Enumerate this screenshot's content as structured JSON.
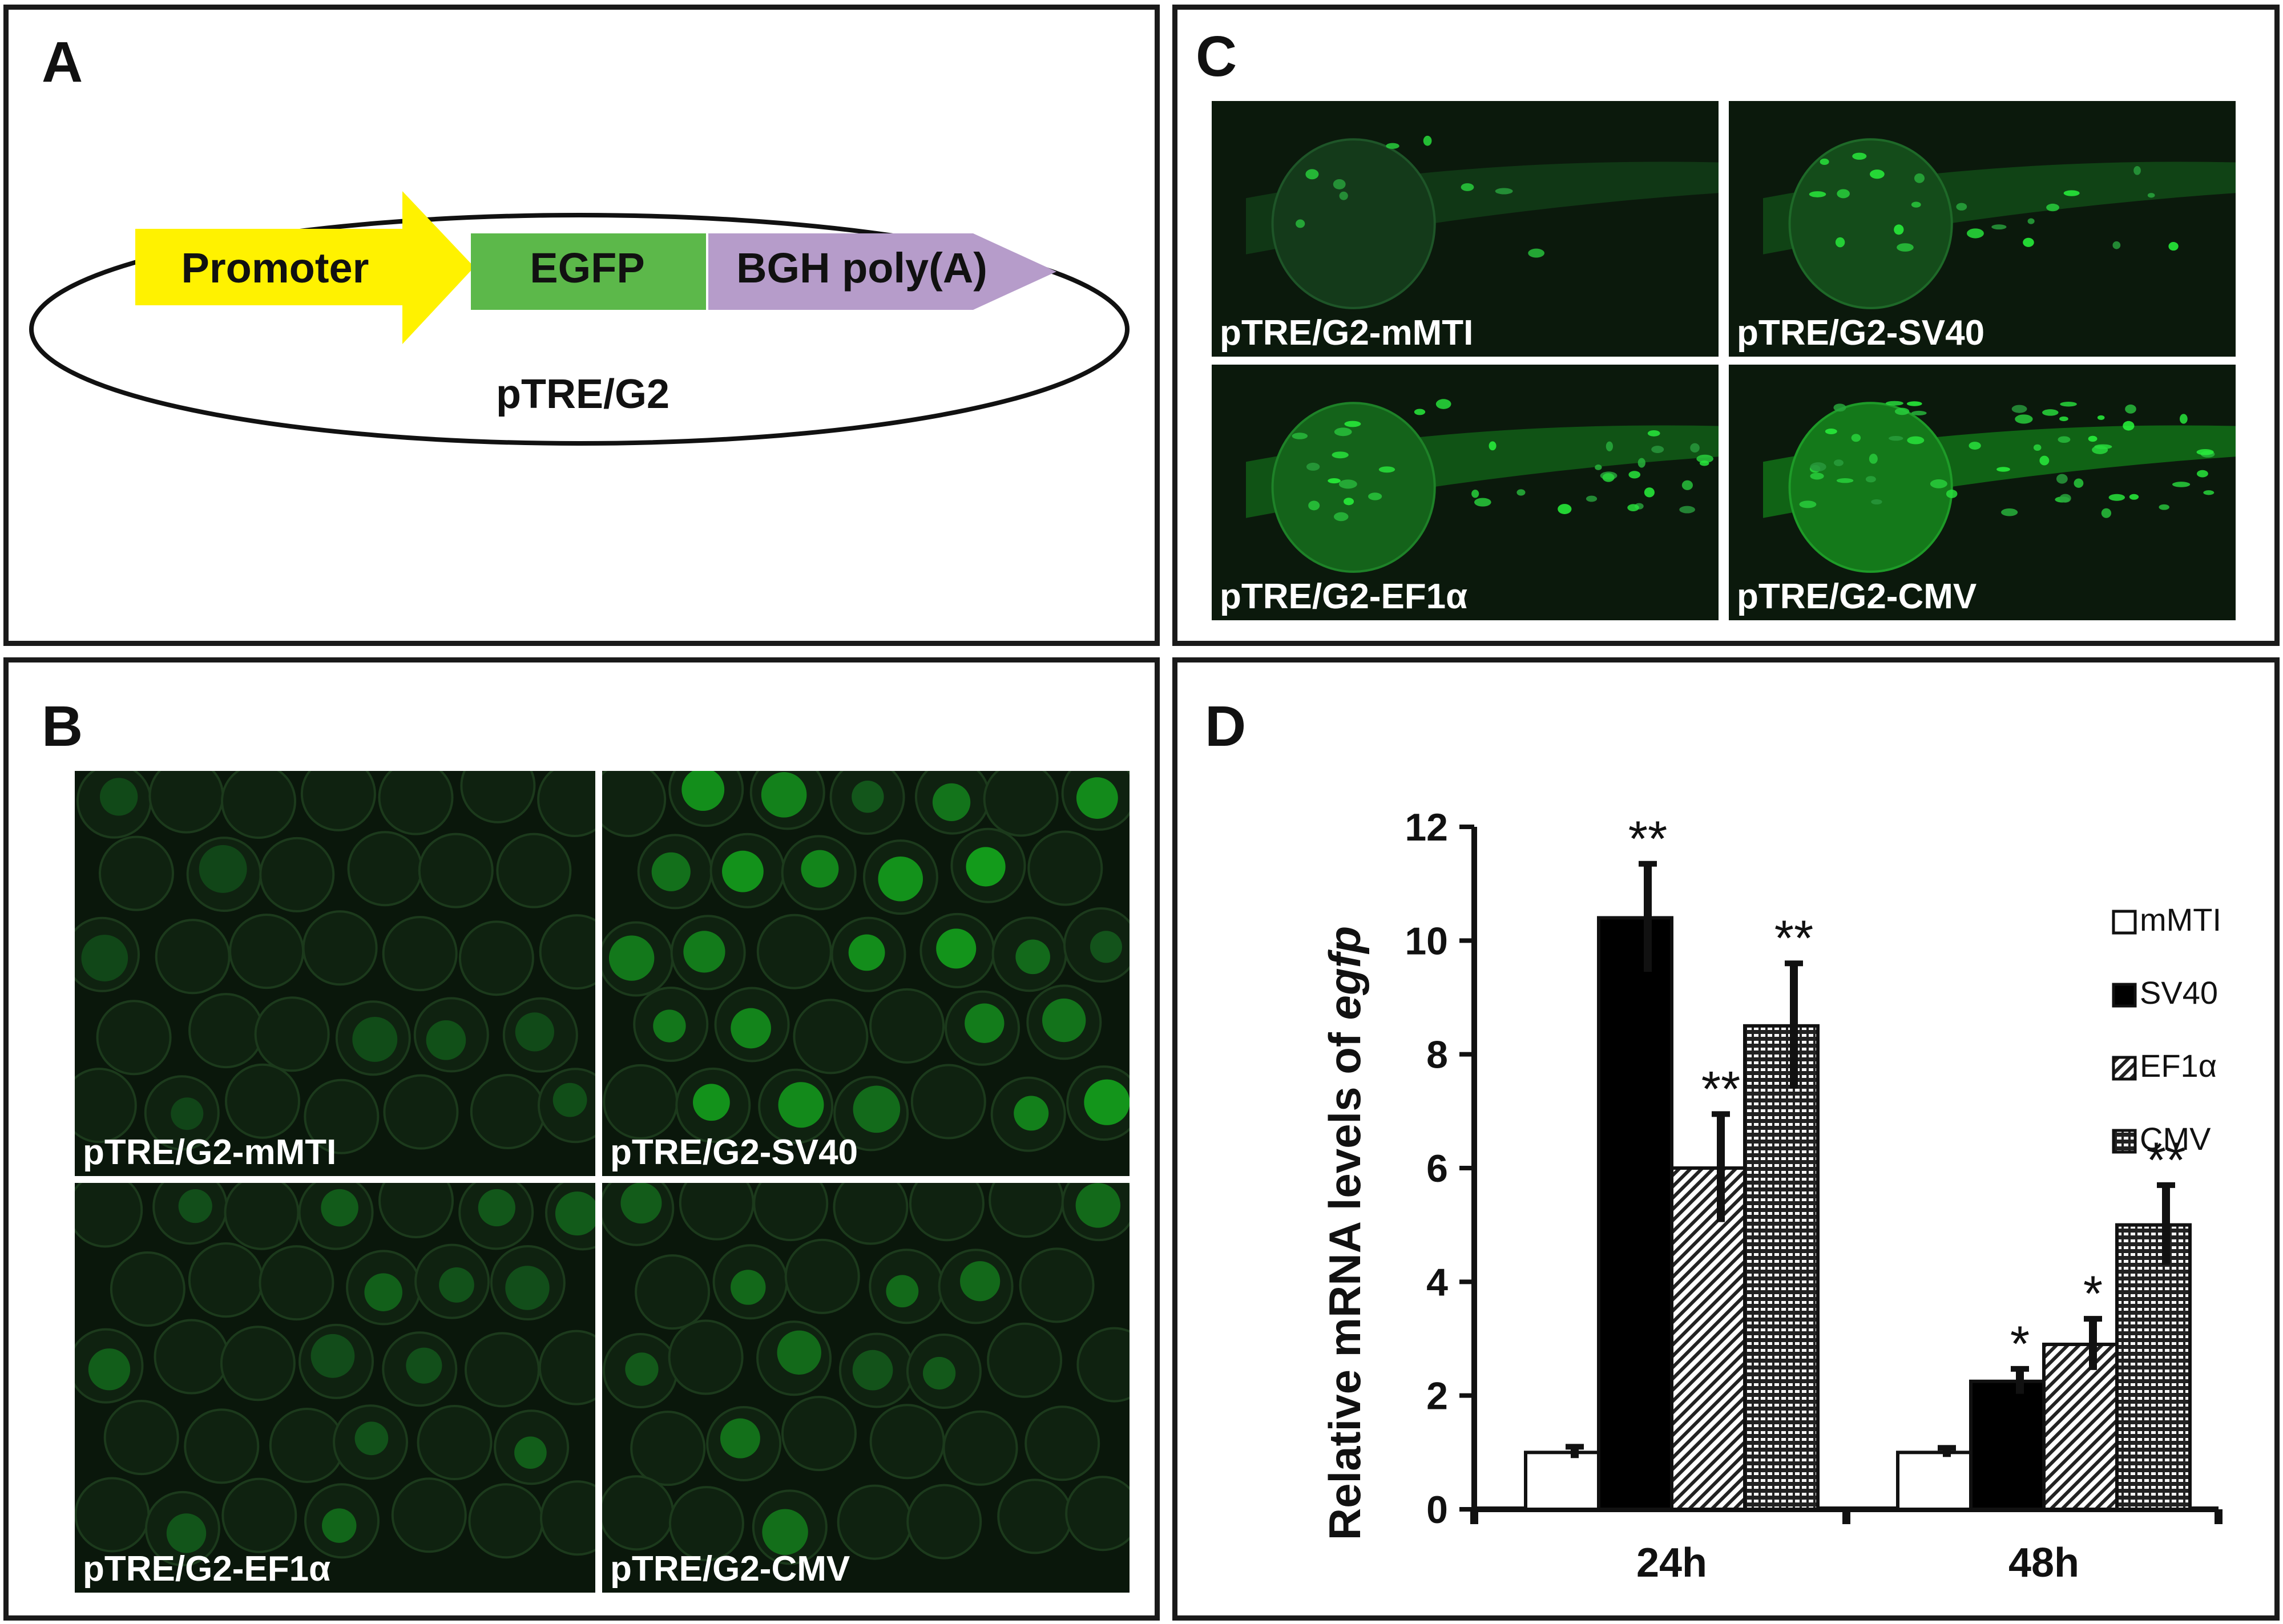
{
  "panels": {
    "A": {
      "letter": "A",
      "construct": {
        "promoter": "Promoter",
        "egfp": "EGFP",
        "polyA": "BGH poly(A)",
        "plasmid": "pTRE/G2",
        "colors": {
          "promoter": "#fff200",
          "egfp": "#5cb84a",
          "polyA": "#b69cca"
        }
      }
    },
    "B": {
      "letter": "B",
      "images": [
        {
          "label": "pTRE/G2-mMTI",
          "brightness": 0.15
        },
        {
          "label": "pTRE/G2-SV40",
          "brightness": 0.7
        },
        {
          "label": "pTRE/G2-EF1α",
          "brightness": 0.35
        },
        {
          "label": "pTRE/G2-CMV",
          "brightness": 0.45
        }
      ]
    },
    "C": {
      "letter": "C",
      "images": [
        {
          "label": "pTRE/G2-mMTI",
          "brightness": 0.15
        },
        {
          "label": "pTRE/G2-SV40",
          "brightness": 0.35
        },
        {
          "label": "pTRE/G2-EF1α",
          "brightness": 0.6
        },
        {
          "label": "pTRE/G2-CMV",
          "brightness": 0.85
        }
      ]
    },
    "D": {
      "letter": "D"
    }
  },
  "chart_data": {
    "type": "bar",
    "title": "",
    "xlabel": "",
    "ylabel_prefix": "Relative mRNA levels of ",
    "ylabel_italic": "egfp",
    "categories": [
      "24h",
      "48h"
    ],
    "ylim": [
      0,
      12
    ],
    "yticks": [
      "0",
      "2",
      "4",
      "6",
      "8",
      "10",
      "12"
    ],
    "legend_position": "top-right",
    "series": [
      {
        "name": "mMTI",
        "values": [
          1.0,
          1.0
        ],
        "errors": [
          0.1,
          0.08
        ],
        "sig": [
          "",
          ""
        ],
        "fill": "white"
      },
      {
        "name": "SV40",
        "values": [
          10.4,
          2.25
        ],
        "errors": [
          0.95,
          0.22
        ],
        "sig": [
          "**",
          "*"
        ],
        "fill": "black"
      },
      {
        "name": "EF1α",
        "values": [
          6.0,
          2.9
        ],
        "errors": [
          0.95,
          0.45
        ],
        "sig": [
          "**",
          "*"
        ],
        "fill": "diagonal"
      },
      {
        "name": "CMV",
        "values": [
          8.5,
          5.0
        ],
        "errors": [
          1.1,
          0.7
        ],
        "sig": [
          "**",
          "**"
        ],
        "fill": "dots"
      }
    ]
  }
}
